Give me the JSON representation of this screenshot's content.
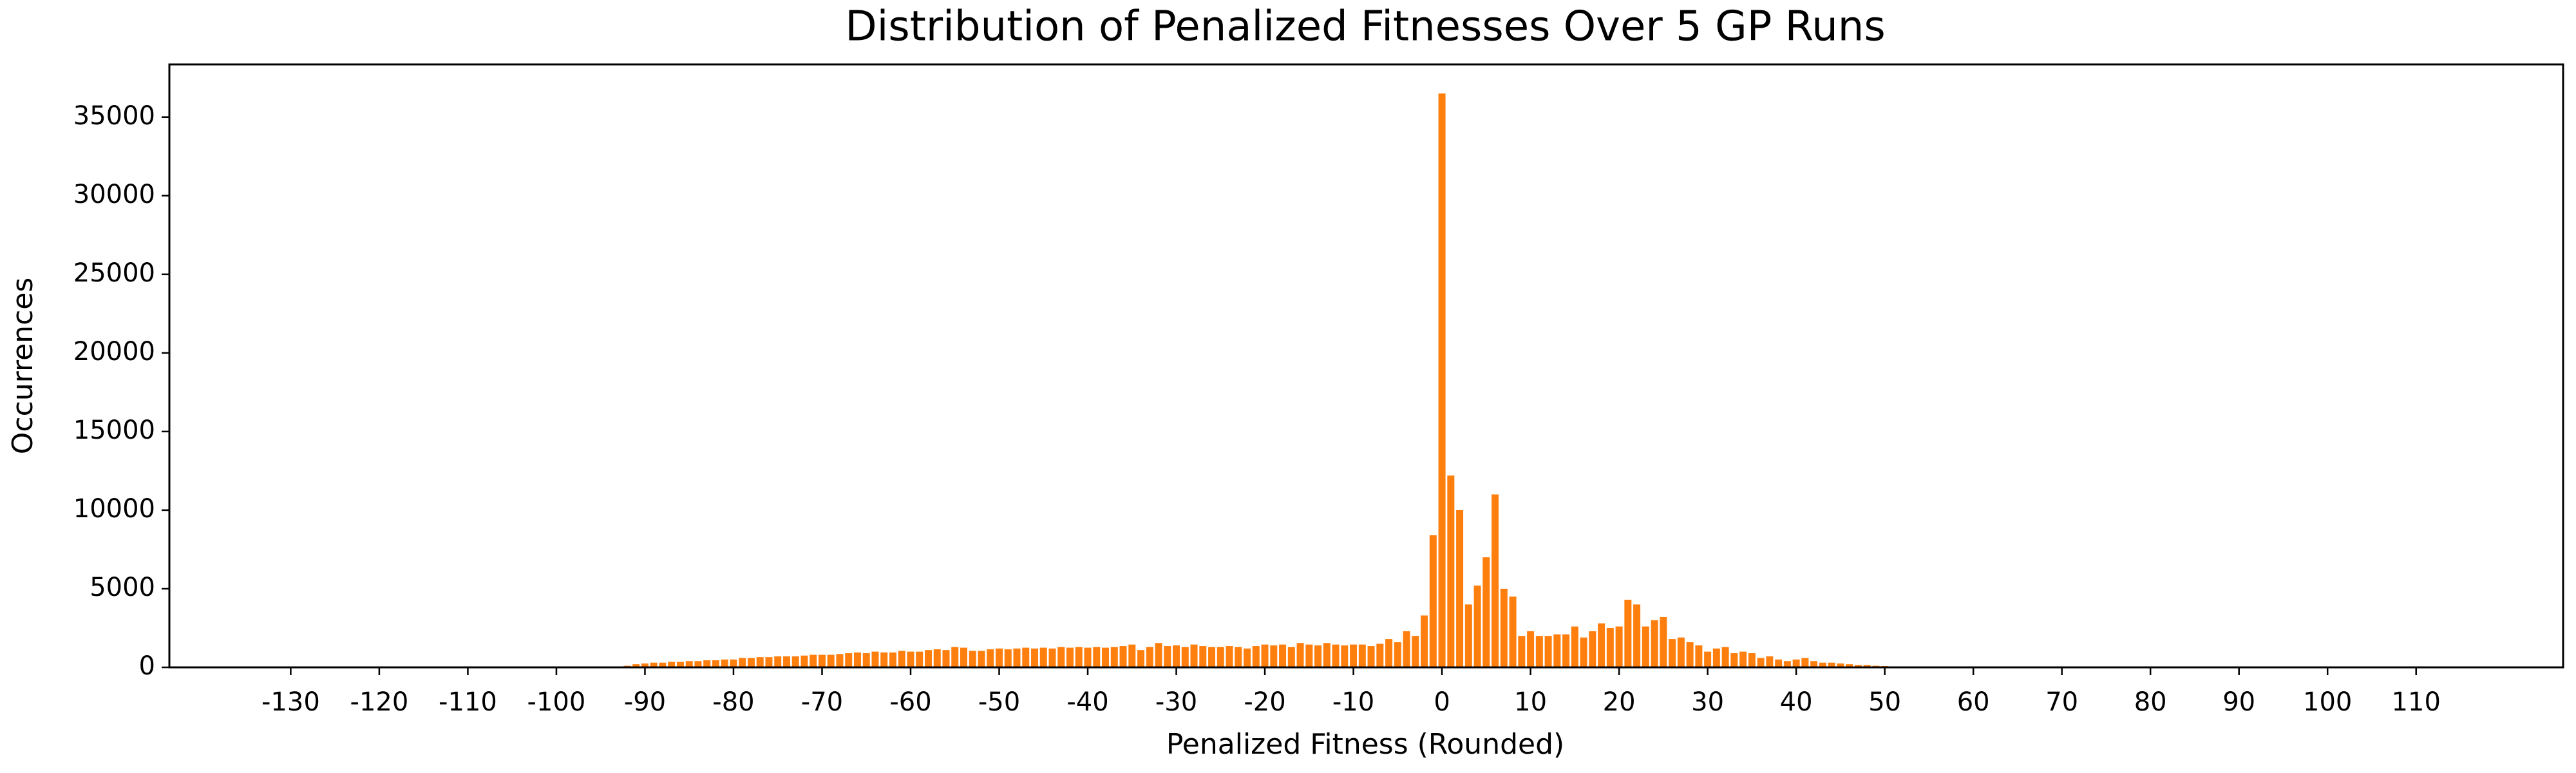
{
  "chart_data": {
    "type": "bar",
    "title": "Distribution of Penalized Fitnesses Over 5 GP Runs",
    "xlabel": "Penalized Fitness (Rounded)",
    "ylabel": "Occurrences",
    "color": "#ff7f0e",
    "x": [
      -92,
      -91,
      -90,
      -89,
      -88,
      -87,
      -86,
      -85,
      -84,
      -83,
      -82,
      -81,
      -80,
      -79,
      -78,
      -77,
      -76,
      -75,
      -74,
      -73,
      -72,
      -71,
      -70,
      -69,
      -68,
      -67,
      -66,
      -65,
      -64,
      -63,
      -62,
      -61,
      -60,
      -59,
      -58,
      -57,
      -56,
      -55,
      -54,
      -53,
      -52,
      -51,
      -50,
      -49,
      -48,
      -47,
      -46,
      -45,
      -44,
      -43,
      -42,
      -41,
      -40,
      -39,
      -38,
      -37,
      -36,
      -35,
      -34,
      -33,
      -32,
      -31,
      -30,
      -29,
      -28,
      -27,
      -26,
      -25,
      -24,
      -23,
      -22,
      -21,
      -20,
      -19,
      -18,
      -17,
      -16,
      -15,
      -14,
      -13,
      -12,
      -11,
      -10,
      -9,
      -8,
      -7,
      -6,
      -5,
      -4,
      -3,
      -2,
      -1,
      0,
      1,
      2,
      3,
      4,
      5,
      6,
      7,
      8,
      9,
      10,
      11,
      12,
      13,
      14,
      15,
      16,
      17,
      18,
      19,
      20,
      21,
      22,
      23,
      24,
      25,
      26,
      27,
      28,
      29,
      30,
      31,
      32,
      33,
      34,
      35,
      36,
      37,
      38,
      39,
      40,
      41,
      42,
      43,
      44,
      45,
      46,
      47,
      48,
      49,
      50,
      51,
      52
    ],
    "values": [
      100,
      200,
      250,
      300,
      300,
      350,
      350,
      400,
      400,
      450,
      450,
      500,
      500,
      600,
      600,
      650,
      650,
      700,
      700,
      700,
      750,
      800,
      800,
      800,
      850,
      900,
      950,
      900,
      1000,
      950,
      950,
      1050,
      1000,
      1000,
      1100,
      1150,
      1100,
      1300,
      1250,
      1050,
      1050,
      1150,
      1200,
      1150,
      1200,
      1250,
      1200,
      1250,
      1200,
      1300,
      1250,
      1300,
      1250,
      1300,
      1250,
      1300,
      1350,
      1450,
      1100,
      1300,
      1550,
      1350,
      1400,
      1300,
      1450,
      1350,
      1300,
      1300,
      1350,
      1300,
      1200,
      1350,
      1450,
      1400,
      1450,
      1300,
      1550,
      1450,
      1400,
      1550,
      1450,
      1400,
      1450,
      1450,
      1350,
      1500,
      1800,
      1600,
      2300,
      2000,
      3300,
      8400,
      36500,
      12200,
      10000,
      4000,
      5200,
      7000,
      11000,
      5000,
      4500,
      2000,
      2300,
      2000,
      2000,
      2100,
      2100,
      2600,
      1900,
      2300,
      2800,
      2500,
      2600,
      4300,
      4000,
      2600,
      3000,
      3200,
      1800,
      1900,
      1600,
      1400,
      1000,
      1200,
      1300,
      900,
      1000,
      900,
      600,
      700,
      500,
      400,
      500,
      600,
      400,
      300,
      300,
      250,
      200,
      150,
      150,
      100,
      80,
      60,
      40
    ],
    "bar_width": 0.8,
    "xlim": [
      -143.7,
      126.6
    ],
    "xticks": [
      -130,
      -120,
      -110,
      -100,
      -90,
      -80,
      -70,
      -60,
      -50,
      -40,
      -30,
      -20,
      -10,
      0,
      10,
      20,
      30,
      40,
      50,
      60,
      70,
      80,
      90,
      100,
      110
    ],
    "ylim": [
      0,
      38350
    ],
    "yticks": [
      0,
      5000,
      10000,
      15000,
      20000,
      25000,
      30000,
      35000
    ]
  }
}
